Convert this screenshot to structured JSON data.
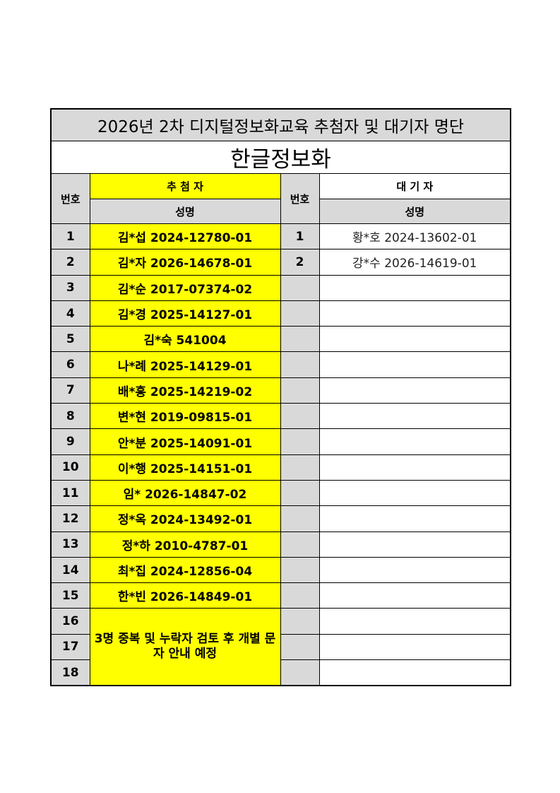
{
  "title": "2026년 2차 디지털정보화교육 추첨자 및 대기자 명단",
  "subtitle": "한글정보화",
  "headers": {
    "number": "번호",
    "selected_group": "추 첨 자",
    "waitlist_group": "대 기 자",
    "name": "성명"
  },
  "selected": [
    {
      "no": "1",
      "name": "김*섭 2024-12780-01"
    },
    {
      "no": "2",
      "name": "김*자 2026-14678-01"
    },
    {
      "no": "3",
      "name": "김*순 2017-07374-02"
    },
    {
      "no": "4",
      "name": "김*경 2025-14127-01"
    },
    {
      "no": "5",
      "name": "김*숙 541004"
    },
    {
      "no": "6",
      "name": "나*례 2025-14129-01"
    },
    {
      "no": "7",
      "name": "배*홍 2025-14219-02"
    },
    {
      "no": "8",
      "name": "변*현 2019-09815-01"
    },
    {
      "no": "9",
      "name": "안*분 2025-14091-01"
    },
    {
      "no": "10",
      "name": "이*행 2025-14151-01"
    },
    {
      "no": "11",
      "name": "임* 2026-14847-02"
    },
    {
      "no": "12",
      "name": "정*옥 2024-13492-01"
    },
    {
      "no": "13",
      "name": "정*하 2010-4787-01"
    },
    {
      "no": "14",
      "name": "최*집 2024-12856-04"
    },
    {
      "no": "15",
      "name": "한*빈 2026-14849-01"
    },
    {
      "no": "16",
      "name": ""
    },
    {
      "no": "17",
      "name": ""
    },
    {
      "no": "18",
      "name": ""
    }
  ],
  "selected_note": "3명 중복 및 누락자 검토 후 개별 문자 안내 예정",
  "waitlist": [
    {
      "no": "1",
      "name": "황*호 2024-13602-01"
    },
    {
      "no": "2",
      "name": "강*수 2026-14619-01"
    }
  ],
  "colors": {
    "highlight": "#ffff00",
    "header_gray": "#d9d9d9"
  }
}
